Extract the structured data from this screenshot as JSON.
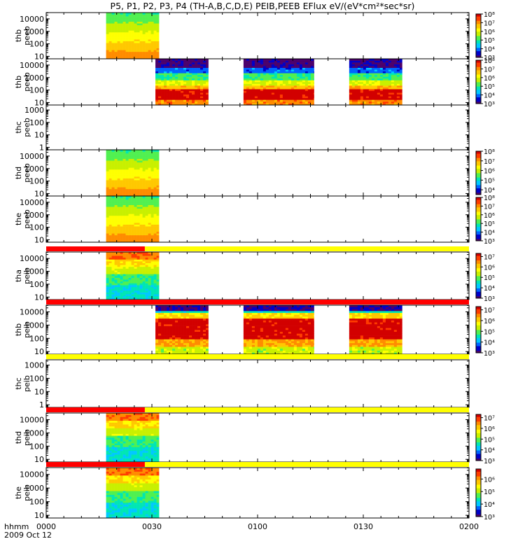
{
  "title": "P5, P1, P2, P3, P4 (TH-A,B,C,D,E) PEIB,PEEB EFlux eV/(eV*cm²*sec*sr)",
  "footer": {
    "label": "hhmm",
    "date": "2009 Oct 12"
  },
  "chart_data": {
    "type": "heatmap",
    "x_axis": {
      "ticks": [
        "0000",
        "0030",
        "0100",
        "0130",
        "0200"
      ],
      "range_minutes": [
        0,
        120
      ]
    },
    "colormap": [
      "#4b006b",
      "#0000c8",
      "#0064ff",
      "#00c8ff",
      "#00e6b4",
      "#50f050",
      "#c8f000",
      "#ffff00",
      "#ffc800",
      "#ff8c00",
      "#ff3c00",
      "#d20000"
    ],
    "panels": [
      {
        "id": "thb-peeb-a",
        "ylabel": [
          "thb",
          "peeb"
        ],
        "yticks": [
          "10",
          "100",
          "1000",
          "10000"
        ],
        "ylog": [
          0.8,
          4.5
        ],
        "colorbar": {
          "ticks": [
            "10³",
            "10⁴",
            "10⁵",
            "10⁶",
            "10⁷",
            "10⁸"
          ],
          "min_exp": 3,
          "max_exp": 8
        },
        "blocks": [
          {
            "t0": 17,
            "t1": 32,
            "style": "flat",
            "low": 0.55,
            "high": 0.85
          }
        ]
      },
      {
        "id": "thb-peeb-b",
        "ylabel": [
          "thb",
          "peeb"
        ],
        "yticks": [
          "10",
          "100",
          "1000",
          "10000"
        ],
        "ylog": [
          0.8,
          4.5
        ],
        "colorbar": {
          "ticks": [
            "10³",
            "10⁴",
            "10⁵",
            "10⁶",
            "10⁷",
            "10⁸"
          ],
          "min_exp": 3,
          "max_exp": 8
        },
        "blocks": [
          {
            "t0": 31,
            "t1": 46,
            "style": "electron"
          },
          {
            "t0": 56,
            "t1": 76,
            "style": "electron"
          },
          {
            "t0": 86,
            "t1": 101,
            "style": "electron"
          }
        ]
      },
      {
        "id": "thc-peeb",
        "ylabel": [
          "thc",
          "peeb"
        ],
        "yticks": [
          "1",
          "10",
          "100",
          "1000"
        ],
        "ylog": [
          -0.2,
          3.4
        ],
        "colorbar": null,
        "blocks": []
      },
      {
        "id": "thd-peeb",
        "ylabel": [
          "thd",
          "peeb"
        ],
        "yticks": [
          "10",
          "100",
          "1000",
          "10000"
        ],
        "ylog": [
          0.8,
          4.5
        ],
        "colorbar": {
          "ticks": [
            "10⁴",
            "10⁵",
            "10⁶",
            "10⁷",
            "10⁸"
          ],
          "min_exp": 3.5,
          "max_exp": 8
        },
        "blocks": [
          {
            "t0": 17,
            "t1": 32,
            "style": "flat",
            "low": 0.55,
            "high": 0.85
          }
        ]
      },
      {
        "id": "the-peeb",
        "ylabel": [
          "the",
          "peeb"
        ],
        "yticks": [
          "10",
          "100",
          "1000",
          "10000"
        ],
        "ylog": [
          0.8,
          4.5
        ],
        "colorbar": {
          "ticks": [
            "10³",
            "10⁴",
            "10⁵",
            "10⁶",
            "10⁷",
            "10⁸"
          ],
          "min_exp": 3,
          "max_exp": 8
        },
        "blocks": [
          {
            "t0": 17,
            "t1": 32,
            "style": "flat",
            "low": 0.55,
            "high": 0.85
          }
        ]
      },
      {
        "id": "tha-peib",
        "ylabel": [
          "tha",
          "peib"
        ],
        "yticks": [
          "10",
          "100",
          "1000",
          "10000"
        ],
        "ylog": [
          0.8,
          4.5
        ],
        "colorbar": {
          "ticks": [
            "10³",
            "10⁴",
            "10⁵",
            "10⁶",
            "10⁷"
          ],
          "min_exp": 3,
          "max_exp": 7.3
        },
        "bar": {
          "red_until": 28
        },
        "blocks": [
          {
            "t0": 17,
            "t1": 32,
            "style": "ion"
          }
        ]
      },
      {
        "id": "thb-peib",
        "ylabel": [
          "thb",
          "peib"
        ],
        "yticks": [
          "10",
          "100",
          "1000",
          "10000"
        ],
        "ylog": [
          0.8,
          4.5
        ],
        "colorbar": {
          "ticks": [
            "10³",
            "10⁴",
            "10⁵",
            "10⁶",
            "10⁷"
          ],
          "min_exp": 3,
          "max_exp": 7.3
        },
        "bar": {
          "red_until": 120
        },
        "blocks": [
          {
            "t0": 31,
            "t1": 46,
            "style": "ionhot"
          },
          {
            "t0": 56,
            "t1": 76,
            "style": "ionhot"
          },
          {
            "t0": 86,
            "t1": 101,
            "style": "ionhot"
          }
        ]
      },
      {
        "id": "thc-peib",
        "ylabel": [
          "thc",
          "peib"
        ],
        "yticks": [
          "1",
          "10",
          "100",
          "1000"
        ],
        "ylog": [
          -0.2,
          3.4
        ],
        "colorbar": null,
        "bar": {
          "red_until": 0
        },
        "blocks": []
      },
      {
        "id": "thd-peib",
        "ylabel": [
          "thd",
          "peib"
        ],
        "yticks": [
          "10",
          "100",
          "1000",
          "10000"
        ],
        "ylog": [
          0.8,
          4.5
        ],
        "colorbar": {
          "ticks": [
            "10³",
            "10⁴",
            "10⁵",
            "10⁶",
            "10⁷"
          ],
          "min_exp": 3,
          "max_exp": 7.3
        },
        "bar": {
          "red_until": 28
        },
        "blocks": [
          {
            "t0": 17,
            "t1": 32,
            "style": "ion"
          }
        ]
      },
      {
        "id": "the-peib",
        "ylabel": [
          "the",
          "peib"
        ],
        "yticks": [
          "10",
          "100",
          "1000",
          "10000"
        ],
        "ylog": [
          0.8,
          4.5
        ],
        "colorbar": {
          "ticks": [
            "10³",
            "10⁴",
            "10⁵",
            "10⁶"
          ],
          "min_exp": 3,
          "max_exp": 6.8
        },
        "bar": {
          "red_until": 28
        },
        "blocks": [
          {
            "t0": 17,
            "t1": 32,
            "style": "ion"
          }
        ]
      }
    ]
  }
}
